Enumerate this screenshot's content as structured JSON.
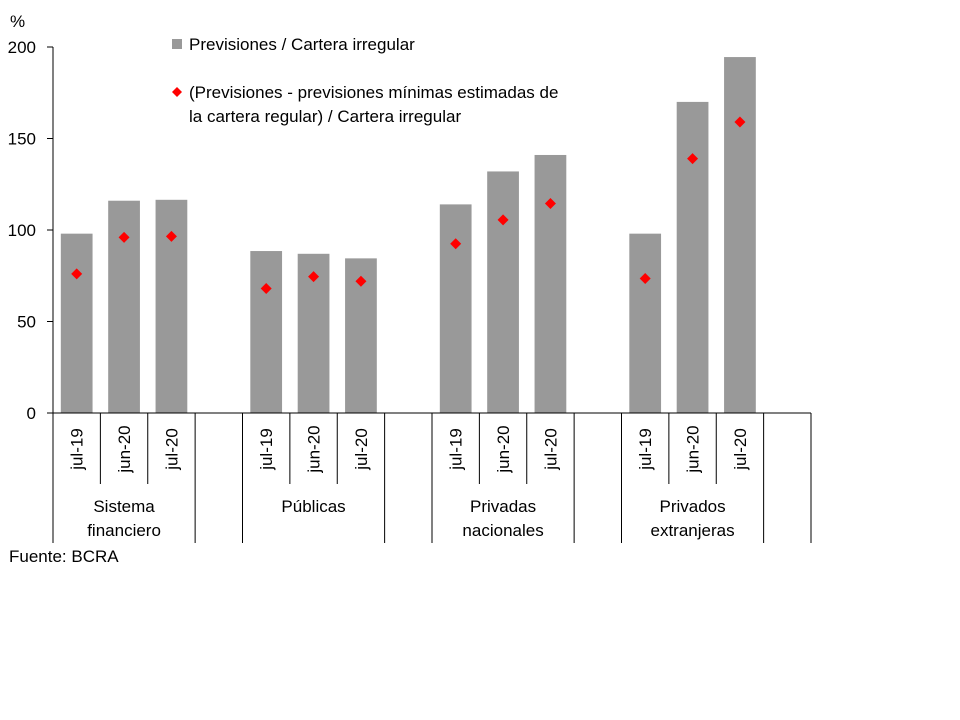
{
  "chart_data": {
    "type": "bar",
    "unit_label": "%",
    "ylim": [
      0,
      200
    ],
    "yticks": [
      0,
      50,
      100,
      150,
      200
    ],
    "grid": false,
    "legend_placement": "top",
    "groups": [
      {
        "label": "Sistema financiero",
        "label_lines": [
          "Sistema",
          "financiero"
        ]
      },
      {
        "label": "Públicas",
        "label_lines": [
          "Públicas"
        ]
      },
      {
        "label": "Privadas nacionales",
        "label_lines": [
          "Privadas",
          "nacionales"
        ]
      },
      {
        "label": "Privados extranjeras",
        "label_lines": [
          "Privados",
          "extranjeras"
        ]
      }
    ],
    "periods": [
      "jul-19",
      "jun-20",
      "jul-20"
    ],
    "series": [
      {
        "name": "Previsiones / Cartera irregular",
        "kind": "bar",
        "color": "#999999",
        "values": [
          [
            98,
            116,
            116.5
          ],
          [
            88.5,
            87,
            84.5
          ],
          [
            114,
            132,
            141
          ],
          [
            98,
            170,
            194.5
          ]
        ]
      },
      {
        "name": "(Previsiones - previsiones mínimas estimadas de la cartera regular) / Cartera irregular",
        "name_lines": [
          "(Previsiones - previsiones mínimas estimadas de",
          "la cartera regular) / Cartera irregular"
        ],
        "kind": "marker",
        "color": "#ff0000",
        "values": [
          [
            76,
            96,
            96.5
          ],
          [
            68,
            74.5,
            72
          ],
          [
            92.5,
            105.5,
            114.5
          ],
          [
            73.5,
            139,
            159
          ]
        ]
      }
    ]
  },
  "source": "Fuente: BCRA"
}
